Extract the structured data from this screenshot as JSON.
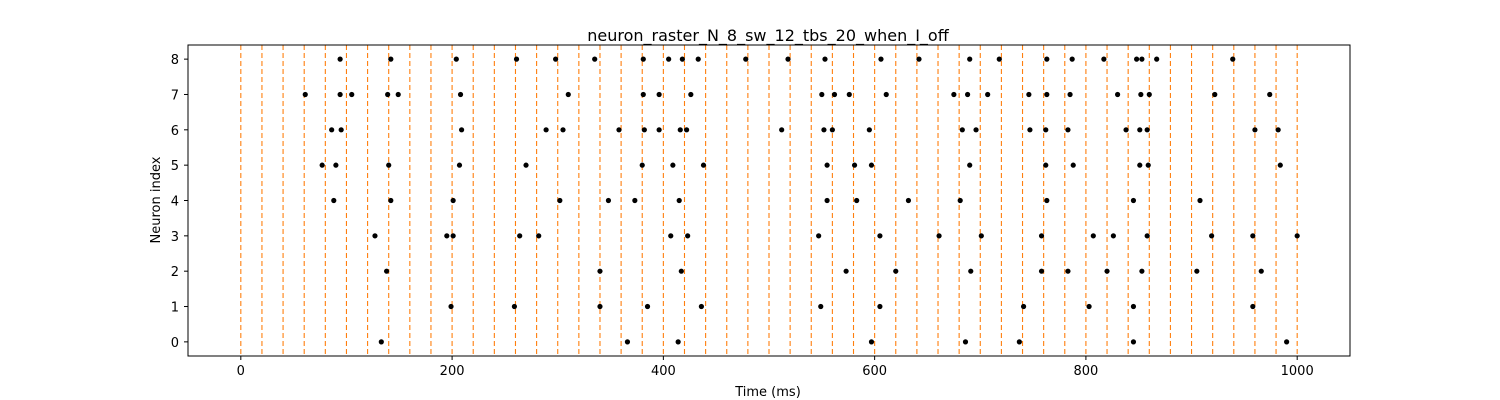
{
  "chart_data": {
    "type": "scatter",
    "title": "neuron_raster_N_8_sw_12_tbs_20_when_I_off",
    "xlabel": "Time (ms)",
    "ylabel": "Neuron index",
    "xlim": [
      -50,
      1050
    ],
    "ylim": [
      -0.4,
      8.4
    ],
    "x_ticks": [
      0,
      200,
      400,
      600,
      800,
      1000
    ],
    "y_ticks": [
      0,
      1,
      2,
      3,
      4,
      5,
      6,
      7,
      8
    ],
    "grid": false,
    "vlines": {
      "color": "#ff7f0e",
      "style": "dashed",
      "x": [
        0,
        20,
        40,
        60,
        80,
        100,
        120,
        140,
        160,
        180,
        200,
        220,
        240,
        260,
        280,
        300,
        320,
        340,
        360,
        380,
        400,
        420,
        440,
        460,
        480,
        500,
        520,
        540,
        560,
        580,
        600,
        620,
        640,
        660,
        680,
        700,
        720,
        740,
        760,
        780,
        800,
        820,
        840,
        860,
        880,
        900,
        920,
        940,
        960,
        980,
        1000
      ]
    },
    "marker_color": "#000000",
    "spikes": [
      {
        "neuron": 8,
        "times": [
          94,
          142,
          204,
          261,
          298,
          335,
          381,
          405,
          418,
          433,
          478,
          518,
          553,
          606,
          642,
          690,
          718,
          763,
          787,
          817,
          848,
          853,
          867,
          939
        ]
      },
      {
        "neuron": 7,
        "times": [
          61,
          94,
          105,
          139,
          149,
          208,
          310,
          381,
          396,
          426,
          550,
          562,
          576,
          611,
          675,
          688,
          707,
          746,
          763,
          785,
          830,
          852,
          860,
          922,
          974
        ]
      },
      {
        "neuron": 6,
        "times": [
          86,
          95,
          209,
          289,
          305,
          358,
          382,
          396,
          416,
          422,
          512,
          552,
          560,
          595,
          683,
          696,
          747,
          762,
          783,
          838,
          851,
          858,
          960,
          982
        ]
      },
      {
        "neuron": 5,
        "times": [
          77,
          90,
          140,
          207,
          270,
          380,
          409,
          438,
          555,
          581,
          597,
          690,
          762,
          788,
          851,
          859,
          984
        ]
      },
      {
        "neuron": 4,
        "times": [
          88,
          142,
          201,
          302,
          348,
          373,
          415,
          555,
          583,
          632,
          681,
          763,
          845,
          908
        ]
      },
      {
        "neuron": 3,
        "times": [
          127,
          195,
          201,
          264,
          282,
          407,
          423,
          547,
          605,
          661,
          701,
          758,
          807,
          826,
          858,
          919,
          958,
          1000
        ]
      },
      {
        "neuron": 2,
        "times": [
          138,
          340,
          417,
          573,
          620,
          691,
          758,
          783,
          820,
          853,
          905,
          966
        ]
      },
      {
        "neuron": 1,
        "times": [
          199,
          259,
          340,
          385,
          436,
          549,
          605,
          741,
          803,
          845,
          958
        ]
      },
      {
        "neuron": 0,
        "times": [
          133,
          366,
          414,
          597,
          686,
          737,
          845,
          990
        ]
      }
    ]
  }
}
